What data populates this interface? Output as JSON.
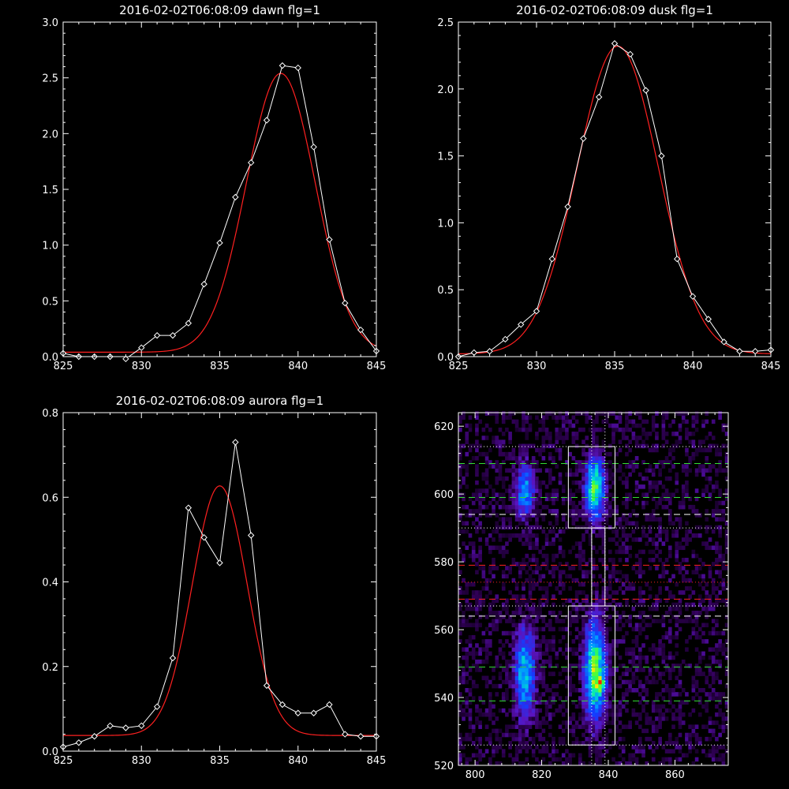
{
  "chart_data": [
    {
      "type": "line",
      "title": "2016-02-02T06:08:09 dawn flg=1",
      "xlim": [
        825,
        845
      ],
      "ylim": [
        0,
        3
      ],
      "xticks": [
        825,
        830,
        835,
        840,
        845
      ],
      "yticks": [
        0.0,
        0.5,
        1.0,
        1.5,
        2.0,
        2.5,
        3.0
      ],
      "ytick_labels": [
        "0.0",
        "0.5",
        "1.0",
        "1.5",
        "2.0",
        "2.5",
        "3.0"
      ],
      "series": [
        {
          "style": "white-diamonds",
          "color": "#ffffff",
          "x": [
            825,
            826,
            827,
            828,
            829,
            830,
            831,
            832,
            833,
            834,
            835,
            836,
            837,
            838,
            839,
            840,
            841,
            842,
            843,
            844,
            845
          ],
          "y": [
            0.03,
            0.0,
            0.0,
            0.0,
            -0.02,
            0.08,
            0.19,
            0.19,
            0.3,
            0.65,
            1.02,
            1.43,
            1.74,
            2.12,
            2.61,
            2.59,
            1.88,
            1.05,
            0.48,
            0.24,
            0.05
          ]
        },
        {
          "style": "red-fit",
          "color": "#ff2020",
          "gaussian": {
            "amplitude": 2.5,
            "center": 838.9,
            "sigma": 2.2,
            "offset": 0.04
          }
        }
      ]
    },
    {
      "type": "line",
      "title": "2016-02-02T06:08:09 dusk flg=1",
      "xlim": [
        825,
        845
      ],
      "ylim": [
        0,
        2.5
      ],
      "xticks": [
        825,
        830,
        835,
        840,
        845
      ],
      "yticks": [
        0.0,
        0.5,
        1.0,
        1.5,
        2.0,
        2.5
      ],
      "ytick_labels": [
        "0.0",
        "0.5",
        "1.0",
        "1.5",
        "2.0",
        "2.5"
      ],
      "series": [
        {
          "style": "white-diamonds",
          "color": "#ffffff",
          "x": [
            825,
            826,
            827,
            828,
            829,
            830,
            831,
            832,
            833,
            834,
            835,
            836,
            837,
            838,
            839,
            840,
            841,
            842,
            843,
            844,
            845
          ],
          "y": [
            0.0,
            0.03,
            0.04,
            0.13,
            0.24,
            0.34,
            0.73,
            1.12,
            1.63,
            1.94,
            2.34,
            2.26,
            1.99,
            1.5,
            0.73,
            0.45,
            0.28,
            0.11,
            0.04,
            0.04,
            0.05
          ]
        },
        {
          "style": "red-fit",
          "color": "#ff2020",
          "gaussian": {
            "amplitude": 2.3,
            "center": 835.2,
            "sigma": 2.6,
            "offset": 0.02
          }
        }
      ]
    },
    {
      "type": "line",
      "title": "2016-02-02T06:08:09 aurora flg=1",
      "xlim": [
        825,
        845
      ],
      "ylim": [
        0,
        0.8
      ],
      "xticks": [
        825,
        830,
        835,
        840,
        845
      ],
      "yticks": [
        0.0,
        0.2,
        0.4,
        0.6,
        0.8
      ],
      "ytick_labels": [
        "0.0",
        "0.2",
        "0.4",
        "0.6",
        "0.8"
      ],
      "series": [
        {
          "style": "white-diamonds",
          "color": "#ffffff",
          "x": [
            825,
            826,
            827,
            828,
            829,
            830,
            831,
            832,
            833,
            834,
            835,
            836,
            837,
            838,
            839,
            840,
            841,
            842,
            843,
            844,
            845
          ],
          "y": [
            0.01,
            0.02,
            0.035,
            0.06,
            0.055,
            0.06,
            0.105,
            0.22,
            0.575,
            0.505,
            0.445,
            0.73,
            0.51,
            0.155,
            0.11,
            0.09,
            0.09,
            0.11,
            0.04,
            0.035,
            0.035
          ]
        },
        {
          "style": "red-fit",
          "color": "#ff2020",
          "gaussian": {
            "amplitude": 0.59,
            "center": 835.0,
            "sigma": 1.75,
            "offset": 0.037
          }
        }
      ]
    },
    {
      "type": "heatmap",
      "title": "",
      "xlim": [
        795,
        876
      ],
      "ylim": [
        520,
        624
      ],
      "xticks": [
        800,
        820,
        840,
        860
      ],
      "yticks": [
        520,
        540,
        560,
        580,
        600,
        620
      ],
      "colormap": "rainbow",
      "emission_regions": [
        {
          "x": 815,
          "y": 601,
          "sx": 2.2,
          "sy": 6,
          "amp": 0.55
        },
        {
          "x": 815,
          "y": 547,
          "sx": 2.4,
          "sy": 10,
          "amp": 0.62
        },
        {
          "x": 836,
          "y": 602,
          "sx": 2.2,
          "sy": 7,
          "amp": 0.78
        },
        {
          "x": 836,
          "y": 548,
          "sx": 2.4,
          "sy": 11,
          "amp": 0.8
        },
        {
          "x": 838,
          "y": 544,
          "sx": 1.2,
          "sy": 1.6,
          "amp": 0.35
        }
      ],
      "boxes": [
        {
          "x0": 828,
          "x1": 842,
          "y0": 590,
          "y1": 614
        },
        {
          "x0": 828,
          "x1": 842,
          "y0": 526,
          "y1": 567
        },
        {
          "x0": 835,
          "x1": 839,
          "y0": 567,
          "y1": 590
        }
      ],
      "vertical_dotted": [
        835,
        839
      ],
      "horizontal_lines": [
        {
          "y": 614,
          "style": "dotted",
          "color": "#ffffff"
        },
        {
          "y": 609,
          "style": "dashed",
          "color": "#33dd33"
        },
        {
          "y": 599,
          "style": "dashed",
          "color": "#33dd33"
        },
        {
          "y": 594,
          "style": "dashed",
          "color": "#ffffff"
        },
        {
          "y": 590,
          "style": "dotted",
          "color": "#ffffff"
        },
        {
          "y": 579,
          "style": "dashed",
          "color": "#ff2020"
        },
        {
          "y": 574,
          "style": "dotted",
          "color": "#ff2020"
        },
        {
          "y": 569,
          "style": "dashed",
          "color": "#ff2020"
        },
        {
          "y": 567,
          "style": "dotted",
          "color": "#ffffff"
        },
        {
          "y": 564,
          "style": "dashed",
          "color": "#ffffff"
        },
        {
          "y": 549,
          "style": "dashed",
          "color": "#33dd33"
        },
        {
          "y": 539,
          "style": "dashed",
          "color": "#33dd33"
        },
        {
          "y": 526,
          "style": "dotted",
          "color": "#ffffff"
        }
      ]
    }
  ]
}
